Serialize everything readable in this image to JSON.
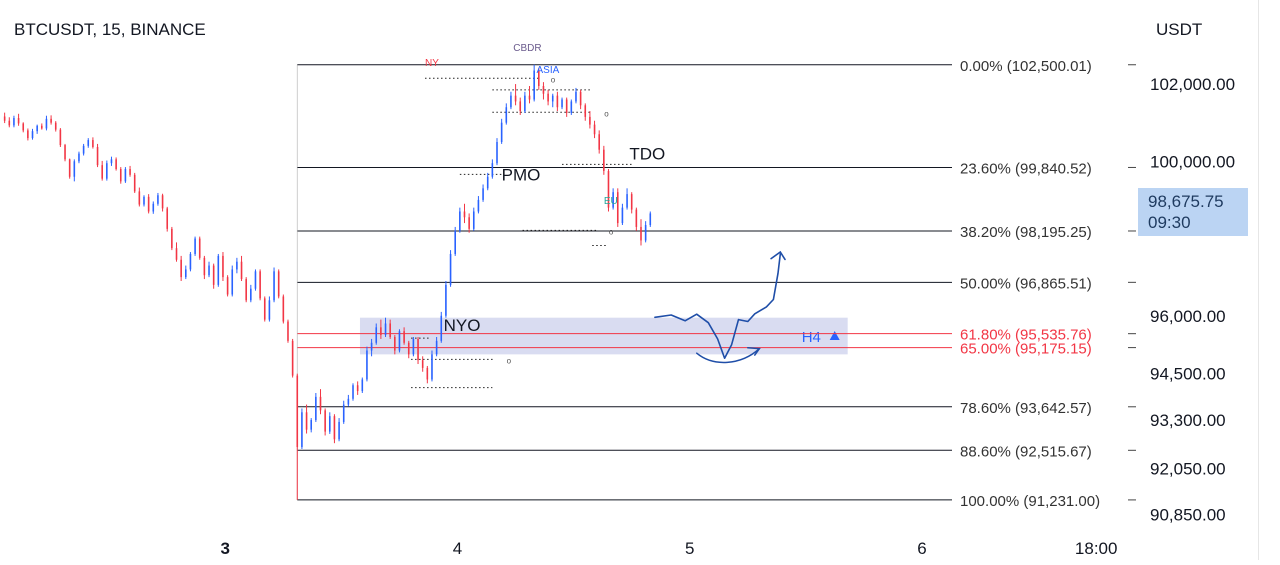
{
  "header": {
    "symbol": "BTCUSDT, 15, BINANCE",
    "currency": "USDT"
  },
  "last_price": {
    "value": "98,675.75",
    "countdown": "09:30"
  },
  "colors": {
    "up": "#2962ff",
    "down": "#f23645",
    "fib_line": "#131722",
    "fib_highlight": "#f23645",
    "zone_fill": "#c5cae9",
    "badge": "#bbd4f3"
  },
  "chart_data": {
    "type": "candlestick",
    "y_scale": "linear",
    "ylim": [
      90400,
      103400
    ],
    "x_ticks": [
      {
        "label": "3",
        "x": 3.0
      },
      {
        "label": "4",
        "x": 4.0
      },
      {
        "label": "5",
        "x": 5.0
      },
      {
        "label": "6",
        "x": 6.0
      },
      {
        "label": "18:00",
        "x": 6.75
      }
    ],
    "xlim": [
      2.03,
      6.93
    ],
    "y_ticks": [
      {
        "label": "102,000.00",
        "value": 102000
      },
      {
        "label": "100,000.00",
        "value": 100000
      },
      {
        "label": "96,000.00",
        "value": 96000
      },
      {
        "label": "94,500.00",
        "value": 94500
      },
      {
        "label": "93,300.00",
        "value": 93300
      },
      {
        "label": "92,050.00",
        "value": 92050
      },
      {
        "label": "90,850.00",
        "value": 90850
      }
    ],
    "fib_levels": [
      {
        "label": "0.00% (102,500.01)",
        "value": 102500.01,
        "highlight": false
      },
      {
        "label": "23.60% (99,840.52)",
        "value": 99840.52,
        "highlight": false
      },
      {
        "label": "38.20% (98,195.25)",
        "value": 98195.25,
        "highlight": false
      },
      {
        "label": "50.00% (96,865.51)",
        "value": 96865.51,
        "highlight": false
      },
      {
        "label": "61.80% (95,535.76)",
        "value": 95535.76,
        "highlight": true
      },
      {
        "label": "65.00% (95,175.15)",
        "value": 95175.15,
        "highlight": true
      },
      {
        "label": "78.60% (93,642.57)",
        "value": 93642.57,
        "highlight": false
      },
      {
        "label": "88.60% (92,515.67)",
        "value": 92515.67,
        "highlight": false
      },
      {
        "label": "100.00% (91,231.00)",
        "value": 91231.0,
        "highlight": false
      }
    ],
    "fib_x_start": 3.31,
    "zone": {
      "x_start": 3.58,
      "x_end": 5.68,
      "top": 95950,
      "bottom": 95000,
      "label": "H4"
    },
    "annotations": [
      {
        "text": "CBDR",
        "x": 4.24,
        "price": 102850,
        "color": "#6a5a8c",
        "size": 10
      },
      {
        "text": "NY",
        "x": 3.86,
        "price": 102470,
        "color": "#f23645",
        "size": 10
      },
      {
        "text": "ASIA",
        "x": 4.34,
        "price": 102280,
        "color": "#2962ff",
        "size": 10
      },
      {
        "text": "TDO",
        "x": 4.74,
        "price": 100050,
        "color": "#131722",
        "size": 17
      },
      {
        "text": "PMO",
        "x": 4.19,
        "price": 99500,
        "color": "#131722",
        "size": 17
      },
      {
        "text": "EU",
        "x": 4.63,
        "price": 98900,
        "color": "#26a69a",
        "size": 10
      },
      {
        "text": "NYO",
        "x": 3.94,
        "price": 95600,
        "color": "#131722",
        "size": 17
      }
    ],
    "level_markers": [
      {
        "x_start": 3.86,
        "x_end": 4.35,
        "price": 102150,
        "end_mark": "o"
      },
      {
        "x_start": 4.15,
        "x_end": 4.58,
        "price": 101850,
        "end_mark": ""
      },
      {
        "x_start": 4.15,
        "x_end": 4.58,
        "price": 101270,
        "end_mark": "o"
      },
      {
        "x_start": 4.45,
        "x_end": 4.76,
        "price": 99920,
        "end_mark": ""
      },
      {
        "x_start": 4.01,
        "x_end": 4.2,
        "price": 99660,
        "end_mark": ""
      },
      {
        "x_start": 4.28,
        "x_end": 4.6,
        "price": 98210,
        "end_mark": "o"
      },
      {
        "x_start": 4.58,
        "x_end": 4.64,
        "price": 97820,
        "end_mark": ""
      },
      {
        "x_start": 3.8,
        "x_end": 3.88,
        "price": 95420,
        "end_mark": ""
      },
      {
        "x_start": 3.8,
        "x_end": 4.16,
        "price": 94870,
        "end_mark": "o"
      },
      {
        "x_start": 3.8,
        "x_end": 4.15,
        "price": 94140,
        "end_mark": ""
      }
    ],
    "projection": [
      [
        4.85,
        95960
      ],
      [
        4.92,
        96020
      ],
      [
        4.98,
        95870
      ],
      [
        5.03,
        96040
      ],
      [
        5.08,
        95820
      ],
      [
        5.12,
        95400
      ],
      [
        5.15,
        94900
      ],
      [
        5.18,
        95250
      ],
      [
        5.21,
        95900
      ],
      [
        5.25,
        95850
      ],
      [
        5.28,
        96050
      ],
      [
        5.33,
        96230
      ],
      [
        5.36,
        96420
      ],
      [
        5.38,
        97100
      ],
      [
        5.39,
        97600
      ]
    ],
    "projection_arrow": [
      [
        5.35,
        97480
      ],
      [
        5.39,
        97650
      ],
      [
        5.41,
        97460
      ]
    ],
    "curve_arrow": [
      [
        5.03,
        95030
      ],
      [
        5.1,
        94680
      ],
      [
        5.22,
        94710
      ],
      [
        5.3,
        95150
      ]
    ],
    "curve_arrow_head": [
      [
        5.28,
        94980
      ],
      [
        5.3,
        95150
      ],
      [
        5.25,
        95170
      ]
    ],
    "candles": [
      [
        2.05,
        101160,
        101260,
        100990,
        101050
      ],
      [
        2.07,
        101050,
        101140,
        100880,
        100930
      ],
      [
        2.09,
        100930,
        101180,
        100880,
        101120
      ],
      [
        2.11,
        101120,
        101230,
        100920,
        100980
      ],
      [
        2.13,
        100980,
        101010,
        100750,
        100800
      ],
      [
        2.15,
        100800,
        100850,
        100540,
        100600
      ],
      [
        2.17,
        100600,
        100840,
        100560,
        100780
      ],
      [
        2.19,
        100780,
        100950,
        100710,
        100920
      ],
      [
        2.21,
        100920,
        100980,
        100820,
        100850
      ],
      [
        2.23,
        100850,
        101180,
        100800,
        101100
      ],
      [
        2.25,
        101100,
        101190,
        100950,
        101000
      ],
      [
        2.27,
        101000,
        101040,
        100770,
        100820
      ],
      [
        2.29,
        100820,
        100860,
        100370,
        100420
      ],
      [
        2.31,
        100420,
        100450,
        100000,
        100050
      ],
      [
        2.33,
        100050,
        100070,
        99550,
        99600
      ],
      [
        2.35,
        99600,
        100050,
        99480,
        100000
      ],
      [
        2.37,
        100000,
        100250,
        99950,
        100200
      ],
      [
        2.39,
        100200,
        100450,
        100150,
        100400
      ],
      [
        2.41,
        100400,
        100600,
        100350,
        100550
      ],
      [
        2.43,
        100550,
        100620,
        100330,
        100370
      ],
      [
        2.45,
        100370,
        100450,
        99850,
        99900
      ],
      [
        2.47,
        99900,
        100010,
        99500,
        99550
      ],
      [
        2.49,
        99550,
        100020,
        99500,
        99950
      ],
      [
        2.51,
        99950,
        100120,
        99880,
        100050
      ],
      [
        2.53,
        100050,
        100100,
        99760,
        99800
      ],
      [
        2.55,
        99800,
        99850,
        99420,
        99480
      ],
      [
        2.57,
        99480,
        99850,
        99440,
        99800
      ],
      [
        2.59,
        99800,
        99880,
        99600,
        99650
      ],
      [
        2.61,
        99650,
        99700,
        99180,
        99220
      ],
      [
        2.63,
        99220,
        99320,
        98830,
        98880
      ],
      [
        2.65,
        98880,
        99120,
        98830,
        99080
      ],
      [
        2.67,
        99080,
        99150,
        98650,
        98700
      ],
      [
        2.69,
        98700,
        98960,
        98640,
        98900
      ],
      [
        2.71,
        98900,
        99180,
        98850,
        99120
      ],
      [
        2.73,
        99120,
        99160,
        98700,
        98780
      ],
      [
        2.75,
        98780,
        98820,
        98180,
        98250
      ],
      [
        2.77,
        98250,
        98300,
        97700,
        97750
      ],
      [
        2.79,
        97750,
        97900,
        97400,
        97450
      ],
      [
        2.81,
        97450,
        97550,
        96900,
        97000
      ],
      [
        2.83,
        97000,
        97300,
        96950,
        97200
      ],
      [
        2.85,
        97200,
        97650,
        97150,
        97600
      ],
      [
        2.87,
        97600,
        98050,
        97550,
        98000
      ],
      [
        2.89,
        98000,
        98050,
        97450,
        97500
      ],
      [
        2.91,
        97500,
        97550,
        96950,
        97050
      ],
      [
        2.93,
        97050,
        97400,
        97000,
        97300
      ],
      [
        2.95,
        97300,
        97350,
        96700,
        96800
      ],
      [
        2.97,
        96800,
        97600,
        96750,
        97550
      ],
      [
        2.99,
        97550,
        97650,
        96900,
        97000
      ],
      [
        3.01,
        97000,
        97050,
        96500,
        96550
      ],
      [
        3.03,
        96550,
        97300,
        96500,
        97200
      ],
      [
        3.05,
        97200,
        97500,
        97100,
        97400
      ],
      [
        3.07,
        97400,
        97550,
        96900,
        96950
      ],
      [
        3.09,
        96950,
        97000,
        96350,
        96400
      ],
      [
        3.11,
        96400,
        96800,
        96350,
        96700
      ],
      [
        3.13,
        96700,
        97200,
        96650,
        97150
      ],
      [
        3.15,
        97150,
        97200,
        96400,
        96450
      ],
      [
        3.17,
        96450,
        96500,
        95850,
        95900
      ],
      [
        3.19,
        95900,
        96500,
        95850,
        96400
      ],
      [
        3.21,
        96400,
        97250,
        96350,
        97150
      ],
      [
        3.23,
        97150,
        97200,
        96450,
        96500
      ],
      [
        3.25,
        96500,
        96550,
        95800,
        95850
      ],
      [
        3.27,
        95850,
        95900,
        95300,
        95350
      ],
      [
        3.29,
        95350,
        95400,
        94400,
        94450
      ],
      [
        3.31,
        94450,
        94500,
        91231,
        92600
      ],
      [
        3.33,
        92600,
        93600,
        92550,
        93500
      ],
      [
        3.35,
        93500,
        93700,
        92950,
        93050
      ],
      [
        3.37,
        93050,
        93350,
        92980,
        93300
      ],
      [
        3.39,
        93300,
        94000,
        93250,
        93900
      ],
      [
        3.41,
        93900,
        94100,
        93450,
        93550
      ],
      [
        3.43,
        93550,
        93600,
        92900,
        93000
      ],
      [
        3.45,
        93000,
        93500,
        92940,
        93400
      ],
      [
        3.47,
        93400,
        93450,
        92700,
        92800
      ],
      [
        3.49,
        92800,
        93350,
        92750,
        93250
      ],
      [
        3.51,
        93250,
        93800,
        93200,
        93700
      ],
      [
        3.53,
        93700,
        93950,
        93650,
        93850
      ],
      [
        3.55,
        93850,
        94250,
        93800,
        94200
      ],
      [
        3.57,
        94200,
        94300,
        93950,
        94050
      ],
      [
        3.59,
        94050,
        94400,
        94000,
        94350
      ],
      [
        3.61,
        94350,
        95200,
        94300,
        95100
      ],
      [
        3.63,
        95100,
        95400,
        94950,
        95300
      ],
      [
        3.65,
        95300,
        95800,
        95250,
        95700
      ],
      [
        3.67,
        95700,
        95900,
        95400,
        95500
      ],
      [
        3.69,
        95500,
        95950,
        95450,
        95800
      ],
      [
        3.71,
        95800,
        95900,
        95400,
        95450
      ],
      [
        3.73,
        95450,
        95500,
        95000,
        95100
      ],
      [
        3.75,
        95100,
        95650,
        95050,
        95600
      ],
      [
        3.77,
        95600,
        95700,
        95250,
        95300
      ],
      [
        3.79,
        95300,
        95350,
        94900,
        95000
      ],
      [
        3.81,
        95000,
        95450,
        94950,
        95400
      ],
      [
        3.83,
        95400,
        95450,
        94750,
        94850
      ],
      [
        3.85,
        94850,
        94950,
        94550,
        94650
      ],
      [
        3.87,
        94650,
        94700,
        94250,
        94350
      ],
      [
        3.89,
        94350,
        95100,
        94300,
        95000
      ],
      [
        3.91,
        95000,
        95450,
        94950,
        95350
      ],
      [
        3.93,
        95350,
        96100,
        95300,
        96000
      ],
      [
        3.95,
        96000,
        96900,
        95950,
        96800
      ],
      [
        3.97,
        96800,
        97700,
        96750,
        97600
      ],
      [
        3.99,
        97600,
        98300,
        97550,
        98200
      ],
      [
        4.01,
        98200,
        98800,
        98150,
        98700
      ],
      [
        4.03,
        98700,
        98900,
        98400,
        98550
      ],
      [
        4.05,
        98550,
        98650,
        98150,
        98250
      ],
      [
        4.07,
        98250,
        98800,
        98200,
        98700
      ],
      [
        4.09,
        98700,
        99100,
        98650,
        99000
      ],
      [
        4.11,
        99000,
        99400,
        98950,
        99300
      ],
      [
        4.13,
        99300,
        99700,
        99250,
        99600
      ],
      [
        4.15,
        99600,
        100050,
        99550,
        99950
      ],
      [
        4.17,
        99950,
        100600,
        99900,
        100500
      ],
      [
        4.19,
        100500,
        101100,
        100450,
        101000
      ],
      [
        4.21,
        101000,
        101500,
        100950,
        101400
      ],
      [
        4.23,
        101400,
        101800,
        101350,
        101700
      ],
      [
        4.25,
        101700,
        102000,
        101450,
        101550
      ],
      [
        4.27,
        101550,
        101650,
        101200,
        101300
      ],
      [
        4.29,
        101300,
        101800,
        101250,
        101700
      ],
      [
        4.31,
        101700,
        101950,
        101500,
        101600
      ],
      [
        4.33,
        101600,
        102500,
        101550,
        102350
      ],
      [
        4.35,
        102350,
        102420,
        101850,
        101950
      ],
      [
        4.37,
        101950,
        102050,
        101600,
        101750
      ],
      [
        4.39,
        101750,
        101850,
        101450,
        101550
      ],
      [
        4.41,
        101550,
        101750,
        101400,
        101700
      ],
      [
        4.43,
        101700,
        101800,
        101300,
        101400
      ],
      [
        4.45,
        101400,
        101650,
        101350,
        101600
      ],
      [
        4.47,
        101600,
        101650,
        101150,
        101250
      ],
      [
        4.49,
        101250,
        101600,
        101200,
        101550
      ],
      [
        4.51,
        101550,
        101900,
        101500,
        101800
      ],
      [
        4.53,
        101800,
        101850,
        101350,
        101450
      ],
      [
        4.55,
        101450,
        101500,
        101050,
        101150
      ],
      [
        4.57,
        101150,
        101300,
        100850,
        100950
      ],
      [
        4.59,
        100950,
        101050,
        100600,
        100700
      ],
      [
        4.61,
        100700,
        100800,
        100200,
        100300
      ],
      [
        4.63,
        100300,
        100400,
        99650,
        99750
      ],
      [
        4.65,
        99750,
        99800,
        98700,
        98800
      ],
      [
        4.67,
        98800,
        99300,
        98750,
        99200
      ],
      [
        4.69,
        99200,
        99300,
        98300,
        98400
      ],
      [
        4.71,
        98400,
        98900,
        98350,
        98800
      ],
      [
        4.73,
        98800,
        99300,
        98750,
        99150
      ],
      [
        4.75,
        99150,
        99200,
        98650,
        98750
      ],
      [
        4.77,
        98750,
        98800,
        98200,
        98300
      ],
      [
        4.79,
        98300,
        98500,
        97820,
        97950
      ],
      [
        4.81,
        97950,
        98450,
        97900,
        98350
      ],
      [
        4.83,
        98350,
        98700,
        98300,
        98650
      ]
    ]
  }
}
